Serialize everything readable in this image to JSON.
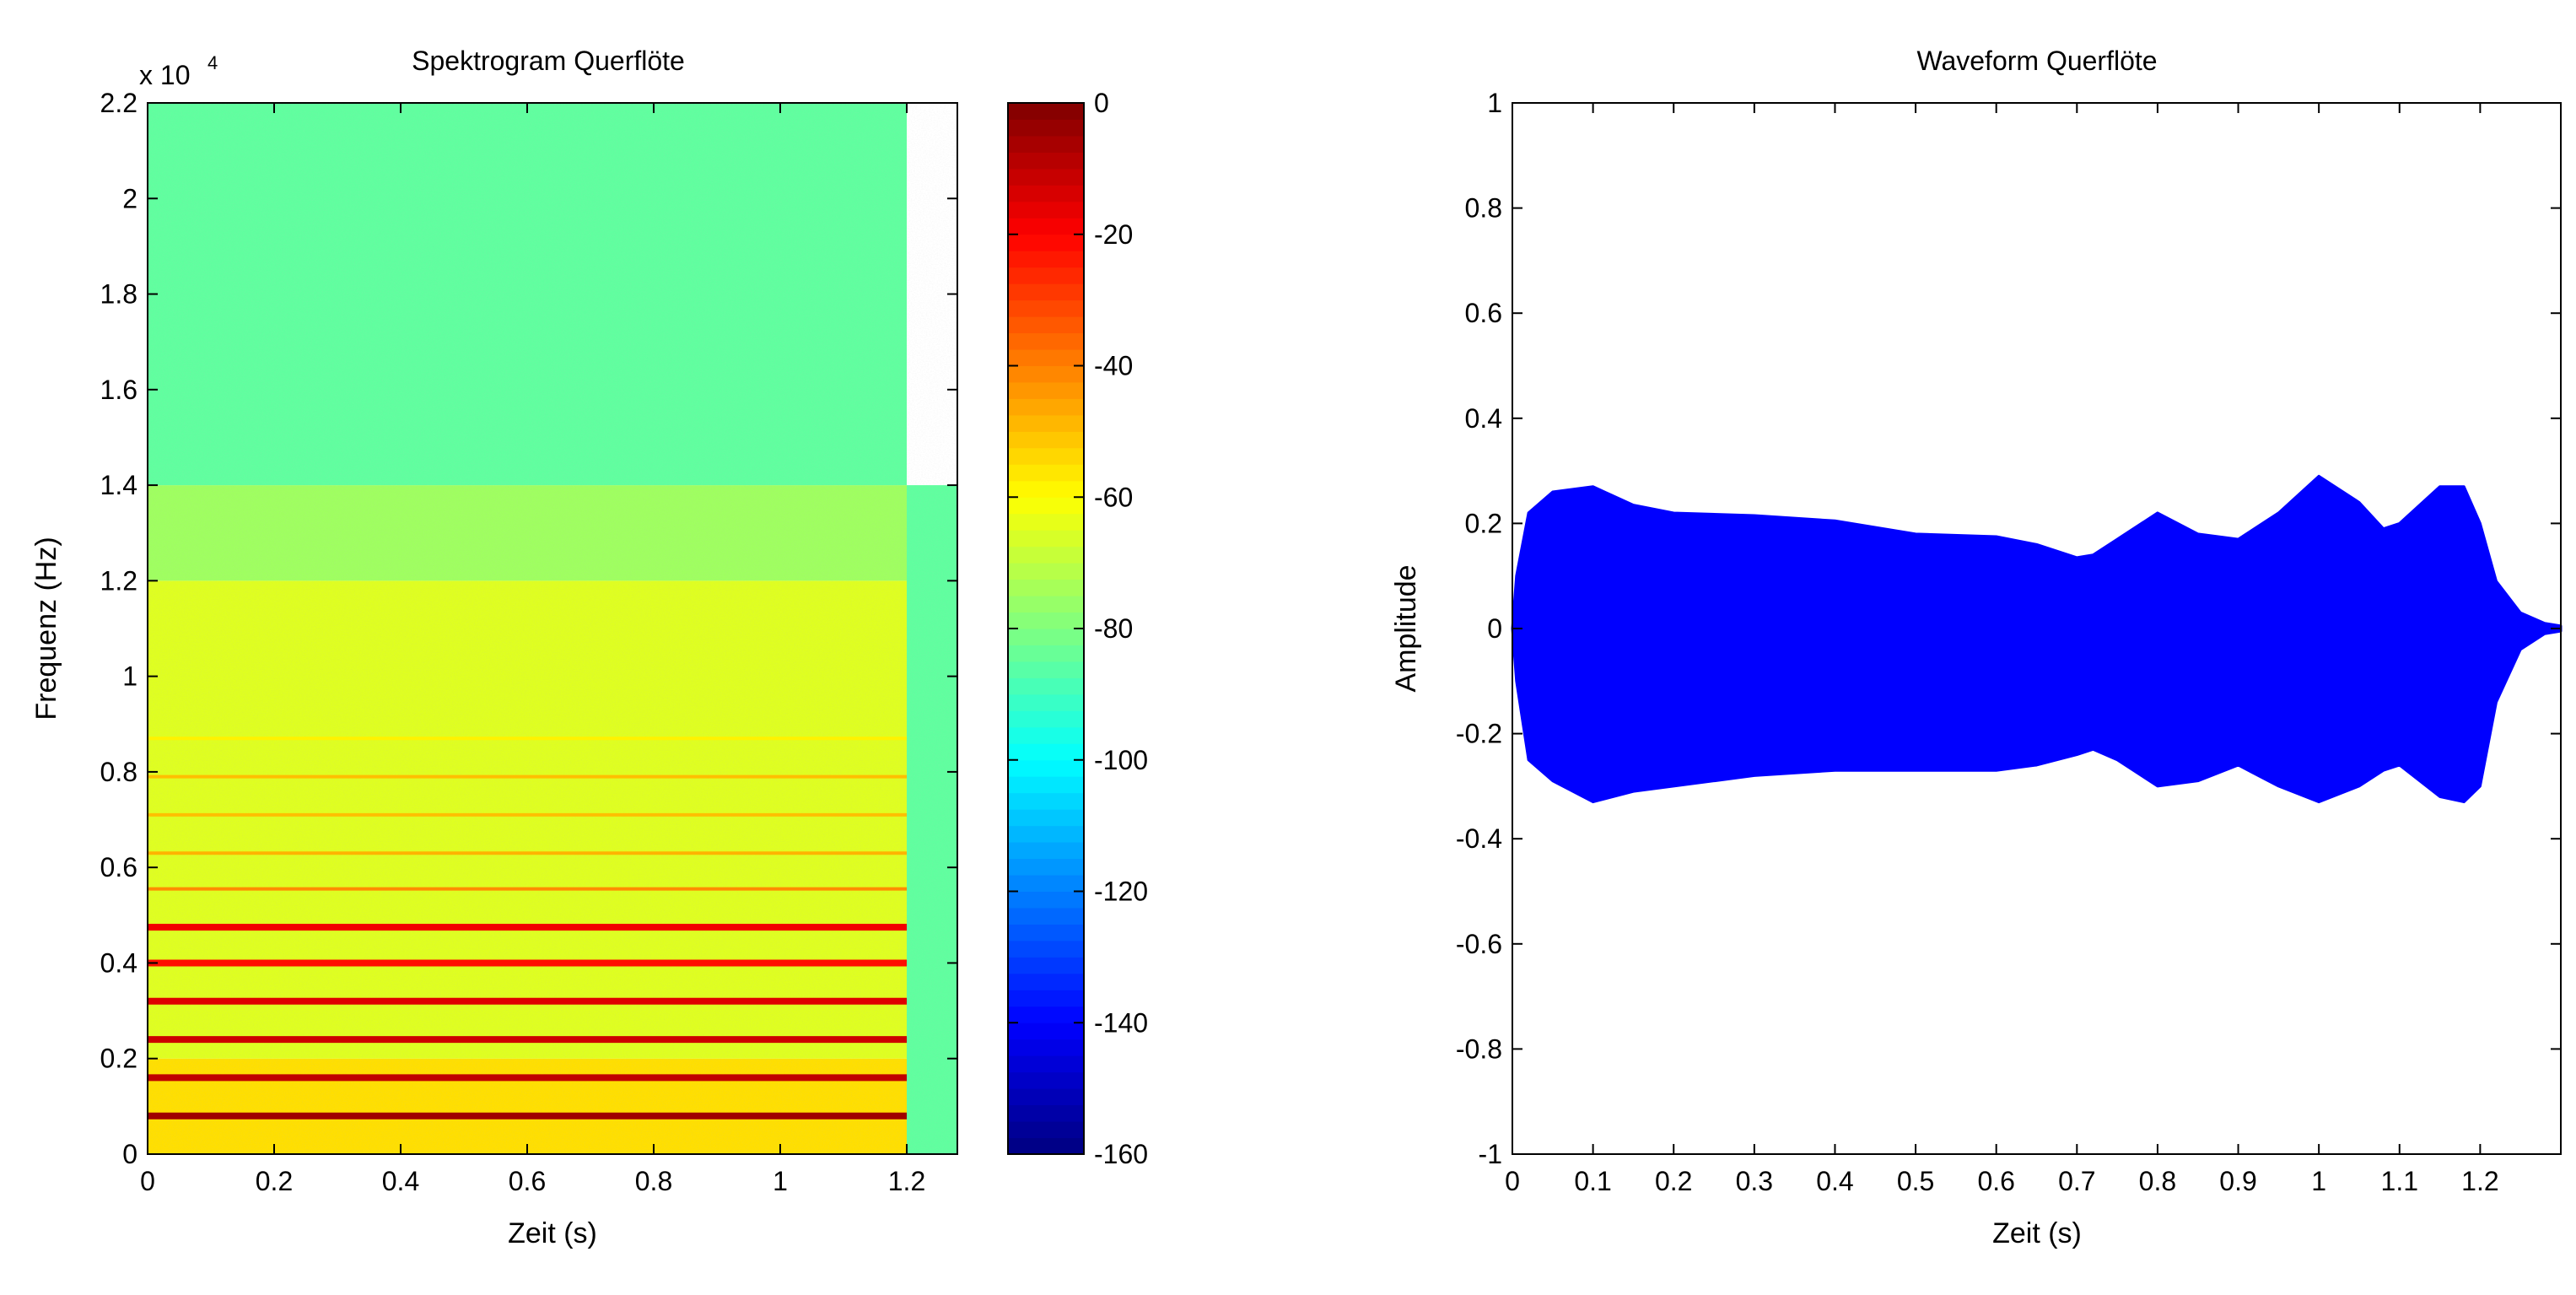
{
  "figure": {
    "background": "#ffffff"
  },
  "chart_data": [
    {
      "type": "heatmap",
      "title": "Spektrogram Querflöte",
      "xlabel": "Zeit (s)",
      "ylabel": "Frequenz (Hz)",
      "y_exponent_label": "x 10",
      "y_exponent_power": "4",
      "xlim": [
        0,
        1.28
      ],
      "ylim": [
        0,
        2.2
      ],
      "xticks": [
        0,
        0.2,
        0.4,
        0.6,
        0.8,
        1,
        1.2
      ],
      "xtick_labels": [
        "0",
        "0.2",
        "0.4",
        "0.6",
        "0.8",
        "1",
        "1.2"
      ],
      "yticks": [
        0,
        0.2,
        0.4,
        0.6,
        0.8,
        1,
        1.2,
        1.4,
        1.6,
        1.8,
        2,
        2.2
      ],
      "ytick_labels": [
        "0",
        "0.2",
        "0.4",
        "0.6",
        "0.8",
        "1",
        "1.2",
        "1.4",
        "1.6",
        "1.8",
        "2",
        "2.2"
      ],
      "colormap": "jet",
      "colorbar": {
        "min": -160,
        "max": 0,
        "ticks": [
          0,
          -20,
          -40,
          -60,
          -80,
          -100,
          -120,
          -140,
          -160
        ],
        "tick_labels": [
          "0",
          "-20",
          "-40",
          "-60",
          "-80",
          "-100",
          "-120",
          "-140",
          "-160"
        ]
      },
      "harmonics_x1e4_hz": [
        0.08,
        0.16,
        0.24,
        0.32,
        0.4,
        0.475,
        0.555,
        0.63,
        0.71,
        0.79,
        0.87
      ],
      "harmonic_levels_db": [
        -5,
        -10,
        -12,
        -15,
        -22,
        -18,
        -42,
        -48,
        -50,
        -50,
        -58
      ],
      "note_end_s": 1.2,
      "background_level_db": {
        "below_0_2": -55,
        "0_2_to_1_2": -65,
        "1_2_to_1_4": -75,
        "above_1_4": -85,
        "after_note_end": -85
      }
    },
    {
      "type": "area",
      "title": "Waveform Querflöte",
      "xlabel": "Zeit (s)",
      "ylabel": "Amplitude",
      "xlim": [
        0,
        1.3
      ],
      "ylim": [
        -1,
        1
      ],
      "xticks": [
        0,
        0.1,
        0.2,
        0.3,
        0.4,
        0.5,
        0.6,
        0.7,
        0.8,
        0.9,
        1,
        1.1,
        1.2
      ],
      "xtick_labels": [
        "0",
        "0.1",
        "0.2",
        "0.3",
        "0.4",
        "0.5",
        "0.6",
        "0.7",
        "0.8",
        "0.9",
        "1",
        "1.1",
        "1.2"
      ],
      "yticks": [
        1,
        0.8,
        0.6,
        0.4,
        0.2,
        0,
        -0.2,
        -0.4,
        -0.6,
        -0.8,
        -1
      ],
      "ytick_labels": [
        "1",
        "0.8",
        "0.6",
        "0.4",
        "0.2",
        "0",
        "-0.2",
        "-0.4",
        "-0.6",
        "-0.8",
        "-1"
      ],
      "color": "#0000ff",
      "envelope_time_s": [
        0,
        0.005,
        0.02,
        0.05,
        0.1,
        0.15,
        0.2,
        0.3,
        0.4,
        0.5,
        0.6,
        0.65,
        0.7,
        0.72,
        0.75,
        0.8,
        0.85,
        0.9,
        0.95,
        1.0,
        1.05,
        1.08,
        1.1,
        1.15,
        1.18,
        1.2,
        1.22,
        1.25,
        1.28,
        1.3
      ],
      "envelope_upper": [
        0,
        0.1,
        0.22,
        0.26,
        0.27,
        0.235,
        0.22,
        0.215,
        0.205,
        0.18,
        0.175,
        0.16,
        0.135,
        0.14,
        0.17,
        0.22,
        0.18,
        0.17,
        0.22,
        0.29,
        0.24,
        0.19,
        0.2,
        0.27,
        0.27,
        0.2,
        0.09,
        0.03,
        0.01,
        0.005
      ],
      "envelope_lower": [
        0,
        -0.1,
        -0.25,
        -0.29,
        -0.33,
        -0.31,
        -0.3,
        -0.28,
        -0.27,
        -0.27,
        -0.27,
        -0.26,
        -0.24,
        -0.23,
        -0.25,
        -0.3,
        -0.29,
        -0.26,
        -0.3,
        -0.33,
        -0.3,
        -0.27,
        -0.26,
        -0.32,
        -0.33,
        -0.3,
        -0.14,
        -0.04,
        -0.01,
        -0.005
      ]
    }
  ]
}
